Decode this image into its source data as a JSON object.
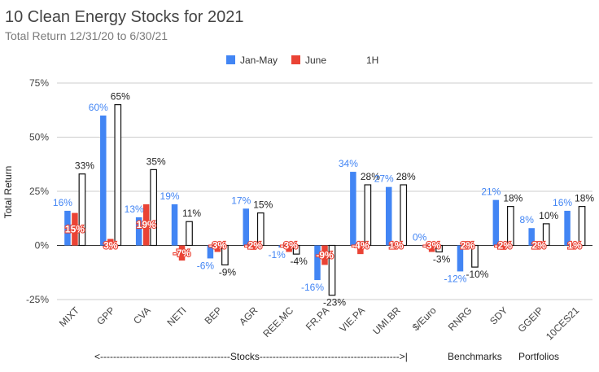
{
  "chart_data": {
    "type": "bar",
    "title": "10 Clean Energy Stocks for 2021",
    "subtitle": "Total Return 12/31/20 to 6/30/21",
    "ylabel": "Total Return",
    "xlabel": "",
    "ylim": [
      -25,
      75
    ],
    "yticks": [
      "75%",
      "50%",
      "25%",
      "0%",
      "-25%"
    ],
    "ytick_values": [
      75,
      50,
      25,
      0,
      -25
    ],
    "categories": [
      "MIXT",
      "GPP",
      "CVA",
      "NETI",
      "BEP",
      "AGR",
      "REE.MC",
      "FR.PA",
      "VIE.PA",
      "UMI.BR",
      "$/Euro",
      "RNRG",
      "SDY",
      "GGEIP",
      "10CES21"
    ],
    "series": [
      {
        "name": "Jan-May",
        "color": "#4285f4",
        "values": [
          16,
          60,
          13,
          19,
          -6,
          17,
          -1,
          -16,
          34,
          27,
          0,
          -12,
          21,
          8,
          16
        ],
        "labels": [
          "16%",
          "60%",
          "13%",
          "19%",
          "-6%",
          "17%",
          "-1%",
          "-16%",
          "34%",
          "27%",
          "0%",
          "-12%",
          "21%",
          "8%",
          "16%"
        ]
      },
      {
        "name": "June",
        "color": "#ea4335",
        "values": [
          15,
          3,
          19,
          -7,
          -3,
          -2,
          -3,
          -9,
          -4,
          1,
          -3,
          2,
          -2,
          2,
          1
        ],
        "labels": [
          "15%",
          "3%",
          "19%",
          "-7%",
          "-3%",
          "-2%",
          "-3%",
          "-9%",
          "-4%",
          "1%",
          "-3%",
          "2%",
          "-2%",
          "2%",
          "1%"
        ]
      },
      {
        "name": "1H",
        "color": "#ffffff",
        "values": [
          33,
          65,
          35,
          11,
          -9,
          15,
          -4,
          -23,
          28,
          28,
          -3,
          -10,
          18,
          10,
          18
        ],
        "labels": [
          "33%",
          "65%",
          "35%",
          "11%",
          "-9%",
          "15%",
          "-4%",
          "-23%",
          "28%",
          "28%",
          "-3%",
          "-10%",
          "18%",
          "10%",
          "18%"
        ]
      }
    ],
    "legend_position": "top",
    "grid": true,
    "annotations": [
      "<----------------------------------------Stocks------------------------------------------->|",
      "Benchmarks",
      "Portfolios"
    ]
  }
}
